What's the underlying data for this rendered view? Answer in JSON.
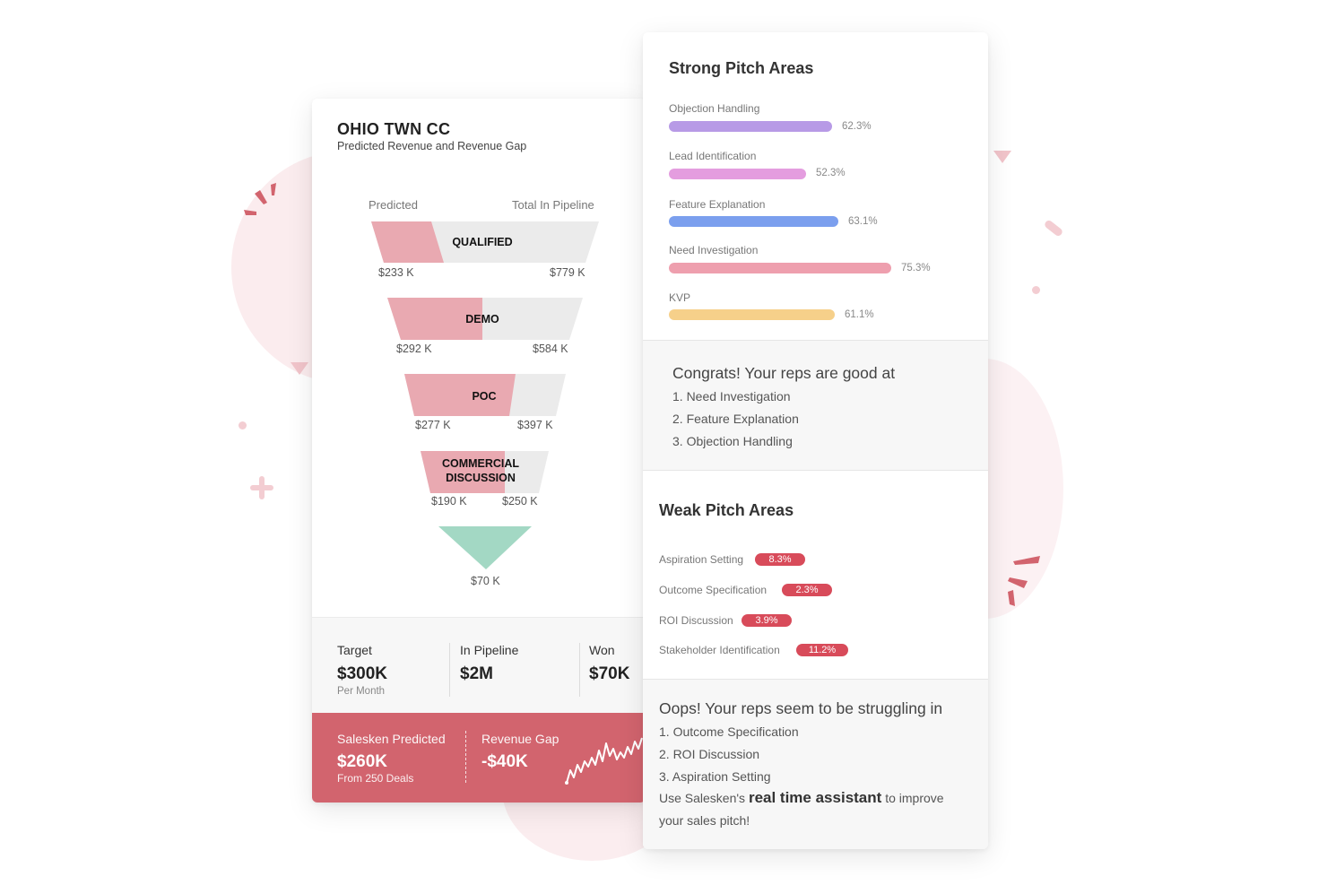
{
  "colors": {
    "accent_red": "#d2646e",
    "funnel_pink": "#e9a9b1",
    "funnel_gray": "#ebebeb",
    "funnel_green": "#a3d8c4",
    "pill_red": "#d84b5a"
  },
  "left": {
    "title": "OHIO TWN CC",
    "subtitle": "Predicted Revenue and Revenue Gap",
    "col_predicted": "Predicted",
    "col_pipeline": "Total In Pipeline",
    "funnel": [
      {
        "label": "QUALIFIED",
        "predicted": "$233 K",
        "pipeline": "$779 K"
      },
      {
        "label": "DEMO",
        "predicted": "$292 K",
        "pipeline": "$584 K"
      },
      {
        "label": "POC",
        "predicted": "$277 K",
        "pipeline": "$397 K"
      },
      {
        "label_line1": "COMMERCIAL",
        "label_line2": "DISCUSSION",
        "predicted": "$190 K",
        "pipeline": "$250 K"
      }
    ],
    "won_value": "$70 K",
    "stats": {
      "target_label": "Target",
      "target_value": "$300K",
      "target_note": "Per Month",
      "pipeline_label": "In Pipeline",
      "pipeline_value": "$2M",
      "won_label": "Won",
      "won_value": "$70K"
    },
    "predicted_box": {
      "pred_label": "Salesken Predicted",
      "pred_value": "$260K",
      "pred_note": "From 250 Deals",
      "gap_label": "Revenue Gap",
      "gap_value": "-$40K"
    }
  },
  "right": {
    "strong_title": "Strong Pitch Areas",
    "strong_items": [
      {
        "label": "Objection Handling",
        "value": "62.3%",
        "color": "#b79ae6"
      },
      {
        "label": "Lead Identification",
        "value": "52.3%",
        "color": "#e49ddf"
      },
      {
        "label": "Feature Explanation",
        "value": "63.1%",
        "color": "#7b9fee"
      },
      {
        "label": "Need Investigation",
        "value": "75.3%",
        "color": "#ee9fae"
      },
      {
        "label": "KVP",
        "value": "61.1%",
        "color": "#f6d08a"
      }
    ],
    "congrats_title": "Congrats! Your reps are good at",
    "congrats_items": [
      "1. Need Investigation",
      "2. Feature Explanation",
      "3. Objection Handling"
    ],
    "weak_title": "Weak Pitch Areas",
    "weak_items": [
      {
        "label": "Aspiration Setting",
        "value": "8.3%"
      },
      {
        "label": "Outcome Specification",
        "value": "2.3%"
      },
      {
        "label": "ROI Discussion",
        "value": "3.9%"
      },
      {
        "label": "Stakeholder Identification",
        "value": "11.2%"
      }
    ],
    "oops_title": "Oops! Your reps seem to be struggling in",
    "oops_items": [
      "1. Outcome Specification",
      "2. ROI Discussion",
      "3. Aspiration Setting"
    ],
    "oops_pre": "Use Salesken's",
    "oops_bold": "real time assistant",
    "oops_post": "to improve",
    "oops_line2": "your sales pitch!"
  }
}
